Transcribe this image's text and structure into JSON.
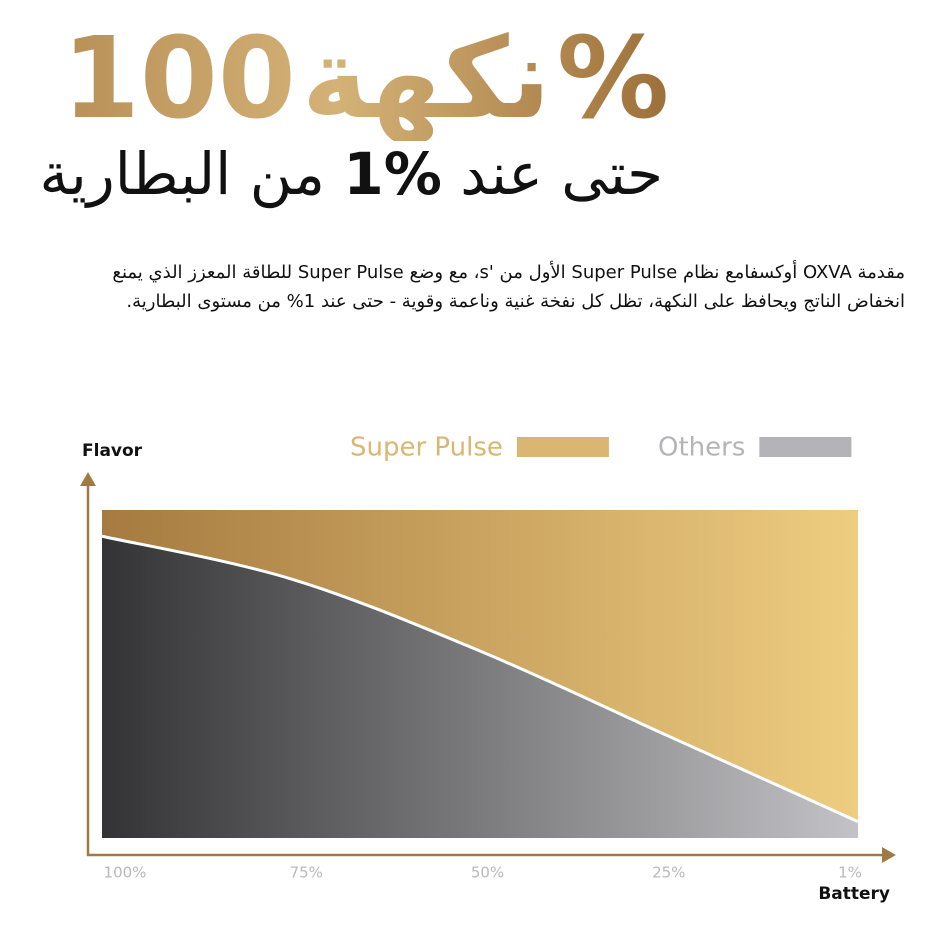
{
  "header": {
    "headline": [
      "100",
      "نكهة",
      "%"
    ],
    "subline": [
      "حتى عند",
      "%1",
      "من البطارية"
    ]
  },
  "description": "مقدمة OXVA أوكسفامع نظام Super Pulse الأول من 's، مع وضع Super Pulse للطاقة المعزز الذي يمنع انخفاض الناتج ويحافظ على النكهة، تظل كل نفخة غنية وناعمة وقوية - حتى عند 1% من مستوى البطارية.",
  "chart_data": {
    "type": "area",
    "y_label": "Flavor",
    "x_label": "Battery",
    "categories": [
      "100%",
      "75%",
      "50%",
      "25%",
      "1%"
    ],
    "ylim": [
      0,
      100
    ],
    "series": [
      {
        "name": "Super Pulse",
        "color": "#d9b672",
        "values": [
          100,
          100,
          100,
          100,
          100
        ]
      },
      {
        "name": "Others",
        "color": "#b4b4b8",
        "values": [
          92,
          79,
          57,
          31,
          5
        ]
      }
    ]
  }
}
